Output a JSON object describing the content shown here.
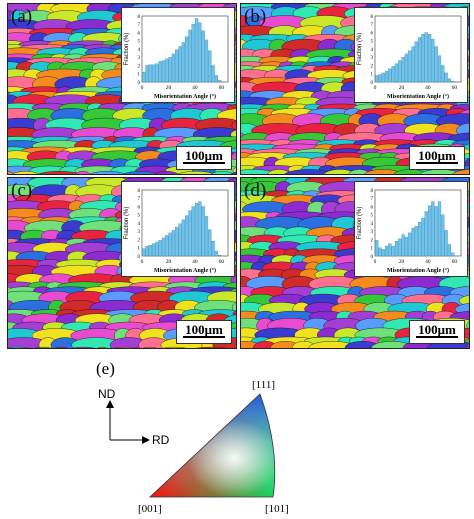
{
  "panels": [
    {
      "id": "a",
      "label": "(a)",
      "scale": "100μm",
      "seed": 11
    },
    {
      "id": "b",
      "label": "(b)",
      "scale": "100μm",
      "seed": 23
    },
    {
      "id": "c",
      "label": "(c)",
      "scale": "100μm",
      "seed": 37
    },
    {
      "id": "d",
      "label": "(d)",
      "scale": "100μm",
      "seed": 51
    }
  ],
  "grain_colors": [
    "#e8233f",
    "#37c83a",
    "#2c6fe0",
    "#f0e21f",
    "#a43fd6",
    "#1fc9d4",
    "#f58a1f",
    "#e74bd0",
    "#6fe07a",
    "#3b3bd1",
    "#c9e82a",
    "#ff6f8f",
    "#8b2bd1",
    "#2fe8b2",
    "#d12a2a",
    "#5a9bff"
  ],
  "chart_data": [
    {
      "type": "bar",
      "panel": "a",
      "xlabel": "Misorientation Angle (°)",
      "ylabel": "Fraction (%)",
      "x_ticks": [
        0,
        20,
        40,
        60
      ],
      "y_ticks": [
        0,
        1,
        2,
        3,
        4,
        5,
        6,
        7,
        8
      ],
      "xlim": [
        0,
        65
      ],
      "ylim": [
        0,
        8
      ],
      "bin_width": 2.5,
      "values": [
        1.2,
        2.0,
        2.1,
        2.1,
        2.2,
        2.5,
        2.6,
        2.8,
        3.0,
        3.4,
        3.9,
        4.3,
        4.8,
        5.5,
        6.3,
        7.0,
        7.7,
        7.2,
        6.2,
        5.1,
        3.8,
        2.0,
        0.8,
        0.2
      ]
    },
    {
      "type": "bar",
      "panel": "b",
      "xlabel": "Misorientation Angle (°)",
      "ylabel": "Fraction (%)",
      "x_ticks": [
        0,
        20,
        40,
        60
      ],
      "y_ticks": [
        0,
        1,
        2,
        3,
        4,
        5,
        6,
        7,
        8
      ],
      "xlim": [
        0,
        65
      ],
      "ylim": [
        0,
        8
      ],
      "bin_width": 2.5,
      "values": [
        0.8,
        0.9,
        1.1,
        1.3,
        1.6,
        1.9,
        2.2,
        2.6,
        3.0,
        3.4,
        3.8,
        4.3,
        4.9,
        5.4,
        5.8,
        6.0,
        5.8,
        5.2,
        4.3,
        3.2,
        2.0,
        1.1,
        0.4,
        0.1
      ]
    },
    {
      "type": "bar",
      "panel": "c",
      "xlabel": "Misorientation Angle (°)",
      "ylabel": "Fraction (%)",
      "x_ticks": [
        0,
        20,
        40,
        60
      ],
      "y_ticks": [
        0,
        1,
        2,
        3,
        4,
        5,
        6,
        7,
        8
      ],
      "xlim": [
        0,
        65
      ],
      "ylim": [
        0,
        8
      ],
      "bin_width": 2.5,
      "values": [
        0.9,
        1.2,
        1.3,
        1.5,
        1.7,
        1.9,
        2.2,
        2.5,
        2.8,
        3.1,
        3.5,
        3.9,
        4.4,
        4.9,
        5.5,
        6.0,
        6.4,
        6.6,
        6.0,
        4.8,
        3.2,
        1.8,
        0.6,
        0.1
      ]
    },
    {
      "type": "bar",
      "panel": "d",
      "xlabel": "Misorientation Angle (°)",
      "ylabel": "Fraction (%)",
      "x_ticks": [
        0,
        20,
        40,
        60
      ],
      "y_ticks": [
        0,
        1,
        2,
        3,
        4,
        5,
        6,
        7,
        8
      ],
      "xlim": [
        0,
        65
      ],
      "ylim": [
        0,
        8
      ],
      "bin_width": 2.5,
      "values": [
        1.9,
        1.0,
        0.8,
        1.2,
        1.5,
        1.2,
        1.8,
        2.1,
        2.6,
        2.3,
        2.8,
        3.4,
        3.6,
        4.1,
        4.6,
        5.4,
        6.1,
        6.6,
        6.0,
        6.6,
        5.0,
        3.1,
        1.4,
        0.4
      ]
    }
  ],
  "ipf": {
    "label": "(e)",
    "axis_nd": "ND",
    "axis_rd": "RD",
    "corner_001": "[001]",
    "corner_101": "[101]",
    "corner_111": "[111]"
  }
}
